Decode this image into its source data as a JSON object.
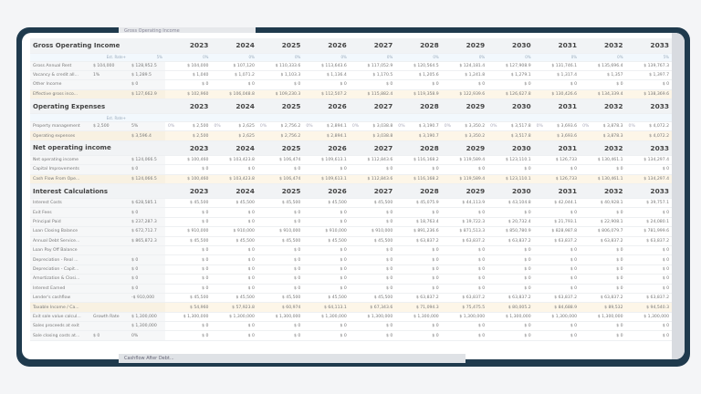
{
  "back_tabs": {
    "top": "Gross Operating Income",
    "bottom": "Cashflow After Debt..."
  },
  "years": [
    "2023",
    "2024",
    "2025",
    "2026",
    "2027",
    "2028",
    "2029",
    "2030",
    "2031",
    "2032",
    "2033"
  ],
  "sections": [
    {
      "title": "Gross Operating Income",
      "rate_row": {
        "label": "Est. Rate+",
        "value": "5%",
        "years": [
          "0%",
          "0%",
          "0%",
          "0%",
          "0%",
          "0%",
          "0%",
          "0%",
          "0%",
          "0%",
          "5%"
        ]
      },
      "rows": [
        {
          "label": "Gross Annual Rent",
          "c2": "$ 104,000",
          "c3": "$ 128,952.5",
          "values": [
            "$ 104,000",
            "$ 107,120",
            "$ 110,333.6",
            "$ 113,643.6",
            "$ 117,052.9",
            "$ 120,564.5",
            "$ 124,181.4",
            "$ 127,908.9",
            "$ 131,746.1",
            "$ 135,696.4",
            "$ 139,767.3"
          ]
        },
        {
          "label": "Vacancy & credit all...",
          "c2": "1%",
          "c3": "$ 1,289.5",
          "values": [
            "$ 1,040",
            "$ 1,071.2",
            "$ 1,103.3",
            "$ 1,136.4",
            "$ 1,170.5",
            "$ 1,205.6",
            "$ 1,241.8",
            "$ 1,279.1",
            "$ 1,317.4",
            "$ 1,357",
            "$ 1,397.7"
          ]
        },
        {
          "label": "Other Income",
          "c2": "",
          "c3": "$ 0",
          "values": [
            "$ 0",
            "$ 0",
            "$ 0",
            "$ 0",
            "$ 0",
            "$ 0",
            "$ 0",
            "$ 0",
            "$ 0",
            "$ 0",
            "$ 0"
          ]
        },
        {
          "label": "Effective gross inco...",
          "c2": "",
          "c3": "$ 127,662.9",
          "highlight": true,
          "values": [
            "$ 102,960",
            "$ 106,048.8",
            "$ 109,230.3",
            "$ 112,507.2",
            "$ 115,882.4",
            "$ 119,358.9",
            "$ 122,939.6",
            "$ 126,627.8",
            "$ 130,426.6",
            "$ 134,339.4",
            "$ 138,369.6"
          ]
        }
      ]
    },
    {
      "title": "Operating Expenses",
      "rate_row": {
        "label": "Est. Rate+",
        "value": "",
        "years": [
          "",
          "",
          "",
          "",
          "",
          "",
          "",
          "",
          "",
          "",
          ""
        ]
      },
      "rows": [
        {
          "label": "Property management",
          "c2": "$ 2,500",
          "c3": "5%",
          "pct": "0%",
          "values": [
            "$ 2,500",
            "$ 2,625",
            "$ 2,756.2",
            "$ 2,894.1",
            "$ 3,038.8",
            "$ 3,190.7",
            "$ 3,350.2",
            "$ 3,517.8",
            "$ 3,693.6",
            "$ 3,878.3",
            "$ 4,072.2"
          ]
        },
        {
          "label": "Operating expenses",
          "c2": "",
          "c3": "$ 3,596.4",
          "highlight": true,
          "values": [
            "$ 2,500",
            "$ 2,625",
            "$ 2,756.2",
            "$ 2,894.1",
            "$ 3,038.8",
            "$ 3,190.7",
            "$ 3,350.2",
            "$ 3,517.8",
            "$ 3,693.6",
            "$ 3,878.3",
            "$ 4,072.2"
          ]
        }
      ]
    },
    {
      "title": "Net operating income",
      "rows": [
        {
          "label": "Net operating income",
          "c2": "",
          "c3": "$ 124,066.5",
          "values": [
            "$ 100,460",
            "$ 103,423.8",
            "$ 106,474",
            "$ 109,613.1",
            "$ 112,843.6",
            "$ 116,168.2",
            "$ 119,589.4",
            "$ 123,110.1",
            "$ 126,733",
            "$ 130,461.1",
            "$ 134,297.4"
          ]
        },
        {
          "label": "Capital Improvements",
          "c2": "",
          "c3": "$ 0",
          "values": [
            "$ 0",
            "$ 0",
            "$ 0",
            "$ 0",
            "$ 0",
            "$ 0",
            "$ 0",
            "$ 0",
            "$ 0",
            "$ 0",
            "$ 0"
          ]
        },
        {
          "label": "Cash Flow From Ope...",
          "c2": "",
          "c3": "$ 124,066.5",
          "highlight": true,
          "values": [
            "$ 100,460",
            "$ 103,423.8",
            "$ 106,474",
            "$ 109,613.1",
            "$ 112,843.6",
            "$ 116,168.2",
            "$ 119,589.4",
            "$ 123,110.1",
            "$ 126,733",
            "$ 130,461.1",
            "$ 134,297.4"
          ]
        }
      ]
    },
    {
      "title": "Interest Calculations",
      "rows": [
        {
          "label": "Interest Costs",
          "c2": "",
          "c3": "$ 628,585.1",
          "values": [
            "$ 45,500",
            "$ 45,500",
            "$ 45,500",
            "$ 45,500",
            "$ 45,500",
            "$ 45,075.9",
            "$ 44,113.9",
            "$ 43,104.8",
            "$ 42,044.1",
            "$ 40,928.1",
            "$ 39,757.1"
          ]
        },
        {
          "label": "Exit Fees",
          "c2": "",
          "c3": "$ 0",
          "values": [
            "$ 0",
            "$ 0",
            "$ 0",
            "$ 0",
            "$ 0",
            "$ 0",
            "$ 0",
            "$ 0",
            "$ 0",
            "$ 0",
            "$ 0"
          ]
        },
        {
          "label": "Principal Paid",
          "c2": "",
          "c3": "$ 237,287.3",
          "values": [
            "$ 0",
            "$ 0",
            "$ 0",
            "$ 0",
            "$ 0",
            "$ 18,763.4",
            "$ 19,722.3",
            "$ 20,732.4",
            "$ 21,793.1",
            "$ 22,908.1",
            "$ 24,080.1"
          ]
        },
        {
          "label": "Loan Closing Balance",
          "c2": "",
          "c3": "$ 672,712.7",
          "values": [
            "$ 910,000",
            "$ 910,000",
            "$ 910,000",
            "$ 910,000",
            "$ 910,000",
            "$ 891,236.6",
            "$ 871,513.3",
            "$ 850,780.9",
            "$ 828,987.8",
            "$ 806,079.7",
            "$ 781,999.6"
          ]
        },
        {
          "label": "Annual Debt Service...",
          "c2": "",
          "c3": "$ 865,872.3",
          "values": [
            "$ 45,500",
            "$ 45,500",
            "$ 45,500",
            "$ 45,500",
            "$ 45,500",
            "$ 63,837.2",
            "$ 63,837.2",
            "$ 63,837.2",
            "$ 63,837.2",
            "$ 63,837.2",
            "$ 63,837.2"
          ]
        },
        {
          "label": "Loan Pay Off Balance",
          "c2": "",
          "c3": "",
          "values": [
            "$ 0",
            "$ 0",
            "$ 0",
            "$ 0",
            "$ 0",
            "$ 0",
            "$ 0",
            "$ 0",
            "$ 0",
            "$ 0",
            "$ 0"
          ]
        },
        {
          "label": "Depreciation - Real ...",
          "c2": "",
          "c3": "$ 0",
          "values": [
            "$ 0",
            "$ 0",
            "$ 0",
            "$ 0",
            "$ 0",
            "$ 0",
            "$ 0",
            "$ 0",
            "$ 0",
            "$ 0",
            "$ 0"
          ]
        },
        {
          "label": "Depreciation - Capit...",
          "c2": "",
          "c3": "$ 0",
          "values": [
            "$ 0",
            "$ 0",
            "$ 0",
            "$ 0",
            "$ 0",
            "$ 0",
            "$ 0",
            "$ 0",
            "$ 0",
            "$ 0",
            "$ 0"
          ]
        },
        {
          "label": "Amortization & Closi...",
          "c2": "",
          "c3": "$ 0",
          "values": [
            "$ 0",
            "$ 0",
            "$ 0",
            "$ 0",
            "$ 0",
            "$ 0",
            "$ 0",
            "$ 0",
            "$ 0",
            "$ 0",
            "$ 0"
          ]
        },
        {
          "label": "Interest Earned",
          "c2": "",
          "c3": "$ 0",
          "values": [
            "$ 0",
            "$ 0",
            "$ 0",
            "$ 0",
            "$ 0",
            "$ 0",
            "$ 0",
            "$ 0",
            "$ 0",
            "$ 0",
            "$ 0"
          ]
        },
        {
          "label": "Lender's cashflow",
          "c2": "",
          "c3": "-$ 910,000",
          "values": [
            "$ 45,500",
            "$ 45,500",
            "$ 45,500",
            "$ 45,500",
            "$ 45,500",
            "$ 63,837.2",
            "$ 63,837.2",
            "$ 63,837.2",
            "$ 63,837.2",
            "$ 63,837.2",
            "$ 63,837.2"
          ]
        },
        {
          "label": "Taxable Income / Ca...",
          "c2": "",
          "c3": "",
          "highlight": true,
          "values": [
            "$ 54,960",
            "$ 57,923.8",
            "$ 60,974",
            "$ 64,113.1",
            "$ 67,343.6",
            "$ 71,094.3",
            "$ 75,475.5",
            "$ 80,005.2",
            "$ 84,688.9",
            "$ 89,532",
            "$ 94,540.3"
          ]
        },
        {
          "label": "Exit sale value calcul...",
          "c2": "Growth Rate",
          "c3": "$ 1,300,000",
          "values": [
            "$ 1,300,000",
            "$ 1,300,000",
            "$ 1,300,000",
            "$ 1,300,000",
            "$ 1,300,000",
            "$ 1,300,000",
            "$ 1,300,000",
            "$ 1,300,000",
            "$ 1,300,000",
            "$ 1,300,000",
            "$ 1,300,000"
          ]
        },
        {
          "label": "Sales proceeds at exit",
          "c2": "",
          "c3": "$ 1,300,000",
          "values": [
            "$ 0",
            "$ 0",
            "$ 0",
            "$ 0",
            "$ 0",
            "$ 0",
            "$ 0",
            "$ 0",
            "$ 0",
            "$ 0",
            "$ 0"
          ]
        },
        {
          "label": "Sale closing costs at...",
          "c2": "$ 0",
          "c3": "0%",
          "values": [
            "$ 0",
            "$ 0",
            "$ 0",
            "$ 0",
            "$ 0",
            "$ 0",
            "$ 0",
            "$ 0",
            "$ 0",
            "$ 0",
            "$ 0"
          ]
        }
      ]
    }
  ]
}
